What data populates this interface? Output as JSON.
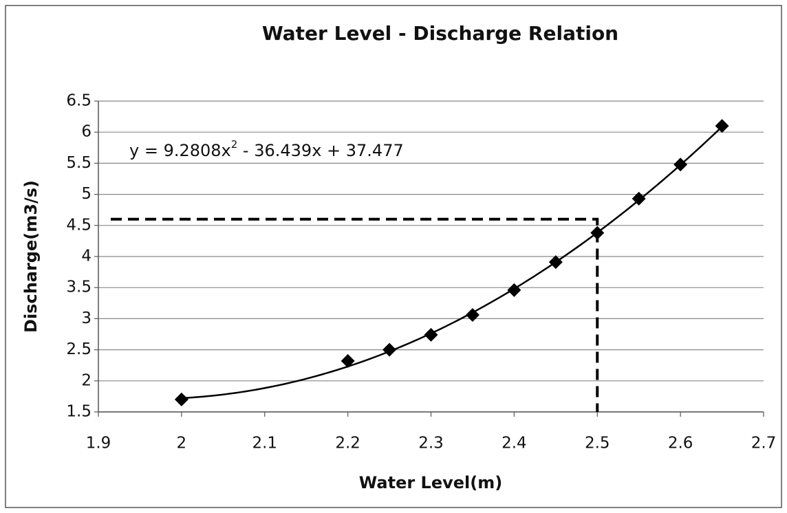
{
  "chart_data": {
    "type": "scatter",
    "title": "Water Level - Discharge Relation",
    "x_label": "Water Level(m)",
    "y_label": "Discharge(m3/s)",
    "x": [
      2,
      2.2,
      2.25,
      2.3,
      2.35,
      2.4,
      2.45,
      2.5,
      2.55,
      2.6,
      2.65
    ],
    "series": [
      {
        "color": "#000000",
        "values": [
          1.7,
          2.32,
          2.5,
          2.74,
          3.06,
          3.46,
          3.91,
          4.38,
          4.93,
          5.48,
          6.1
        ]
      }
    ],
    "trendline": {
      "type": "polynomial",
      "coefficients": [
        9.2808,
        -36.439,
        37.477
      ],
      "label_parts": [
        "y = 9.2808x",
        "2",
        " - 36.439x + 37.477"
      ]
    },
    "reference": {
      "x": 2.5,
      "y": 4.6
    },
    "xlim": [
      1.9,
      2.7
    ],
    "xticks": [
      1.9,
      2,
      2.1,
      2.2,
      2.3,
      2.4,
      2.5,
      2.6,
      2.7
    ],
    "ylim": [
      1.5,
      6.5
    ],
    "yticks": [
      1.5,
      2,
      2.5,
      3,
      3.5,
      4,
      4.5,
      5,
      5.5,
      6,
      6.5
    ],
    "grid": true
  }
}
